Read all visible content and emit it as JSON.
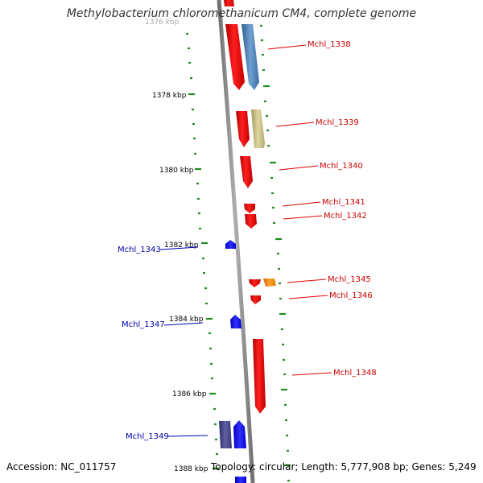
{
  "header": {
    "title": "Methylobacterium chloromethanicum CM4, complete genome"
  },
  "footer": {
    "accession": "Accession: NC_011757",
    "summary": "Topology: circular; Length: 5,777,908 bp; Genes: 5,249"
  },
  "scale": {
    "tick_labels": [
      "1378 kbp",
      "1380 kbp",
      "1382 kbp",
      "1384 kbp",
      "1386 kbp",
      "1388 kbp"
    ],
    "top_partial_label": "1376 kbp"
  },
  "genes": {
    "right_labels": [
      "Mchl_1338",
      "Mchl_1339",
      "Mchl_1340",
      "Mchl_1341",
      "Mchl_1342",
      "Mchl_1345",
      "Mchl_1346",
      "Mchl_1348"
    ],
    "left_labels": [
      "Mchl_1343",
      "Mchl_1347",
      "Mchl_1349"
    ]
  },
  "colors": {
    "forward_strand_red": "#ff0000",
    "reverse_strand_blue": "#0000ff",
    "light_blue_feature": "#4a86c0",
    "khaki_feature": "#c8c080",
    "orange_feature": "#ff8c00",
    "navy_feature": "#404080",
    "backbone_grey": "#909090",
    "tick_green": "#228b22",
    "label_red": "#cc0000",
    "label_blue": "#0000aa"
  }
}
